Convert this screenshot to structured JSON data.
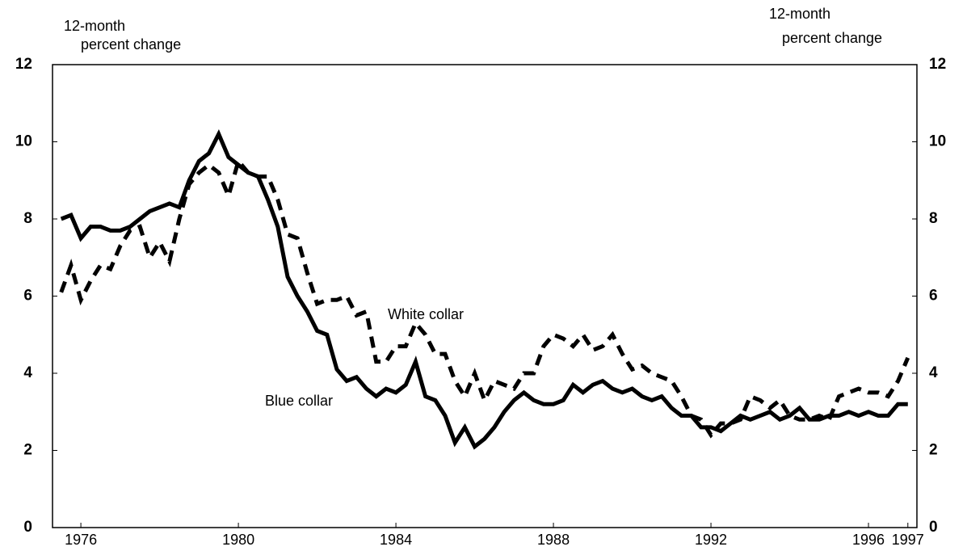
{
  "chart_data": {
    "type": "line",
    "y_label": [
      "12-month",
      "percent  change"
    ],
    "y2_label": [
      "12-month",
      "percent change"
    ],
    "x": [
      1975.5,
      1975.75,
      1976,
      1976.25,
      1976.5,
      1976.75,
      1977,
      1977.25,
      1977.5,
      1977.75,
      1978,
      1978.25,
      1978.5,
      1978.75,
      1979,
      1979.25,
      1979.5,
      1979.75,
      1980,
      1980.25,
      1980.5,
      1980.75,
      1981,
      1981.25,
      1981.5,
      1981.75,
      1982,
      1982.25,
      1982.5,
      1982.75,
      1983,
      1983.25,
      1983.5,
      1983.75,
      1984,
      1984.25,
      1984.5,
      1984.75,
      1985,
      1985.25,
      1985.5,
      1985.75,
      1986,
      1986.25,
      1986.5,
      1986.75,
      1987,
      1987.25,
      1987.5,
      1987.75,
      1988,
      1988.25,
      1988.5,
      1988.75,
      1989,
      1989.25,
      1989.5,
      1989.75,
      1990,
      1990.25,
      1990.5,
      1990.75,
      1991,
      1991.25,
      1991.5,
      1991.75,
      1992,
      1992.25,
      1992.5,
      1992.75,
      1993,
      1993.25,
      1993.5,
      1993.75,
      1994,
      1994.25,
      1994.5,
      1994.75,
      1995,
      1995.25,
      1995.5,
      1995.75,
      1996,
      1996.25,
      1996.5,
      1996.75,
      1997
    ],
    "series": [
      {
        "name": "White collar",
        "color": "#000000",
        "dash": true,
        "values": [
          6.1,
          6.8,
          5.9,
          6.4,
          6.8,
          6.7,
          7.3,
          7.7,
          7.8,
          7.0,
          7.4,
          6.9,
          8.0,
          8.9,
          9.2,
          9.4,
          9.2,
          8.6,
          9.5,
          9.2,
          9.1,
          9.1,
          8.5,
          7.6,
          7.5,
          6.6,
          5.8,
          5.9,
          5.9,
          6.0,
          5.5,
          5.6,
          4.3,
          4.3,
          4.7,
          4.7,
          5.3,
          5.0,
          4.5,
          4.5,
          3.8,
          3.4,
          4.0,
          3.3,
          3.8,
          3.7,
          3.6,
          4.0,
          4.0,
          4.7,
          5.0,
          4.9,
          4.7,
          5.0,
          4.6,
          4.7,
          5.0,
          4.5,
          4.1,
          4.2,
          4.0,
          3.9,
          3.8,
          3.4,
          2.9,
          2.8,
          2.4,
          2.7,
          2.7,
          2.8,
          3.4,
          3.3,
          3.1,
          3.3,
          2.9,
          2.8,
          2.8,
          2.9,
          2.8,
          3.4,
          3.5,
          3.6,
          3.5,
          3.5,
          3.4,
          3.8,
          4.4
        ]
      },
      {
        "name": "Blue collar",
        "color": "#000000",
        "dash": false,
        "values": [
          8.0,
          8.1,
          7.5,
          7.8,
          7.8,
          7.7,
          7.7,
          7.8,
          8.0,
          8.2,
          8.3,
          8.4,
          8.3,
          9.0,
          9.5,
          9.7,
          10.2,
          9.6,
          9.4,
          9.2,
          9.1,
          8.5,
          7.8,
          6.5,
          6.0,
          5.6,
          5.1,
          5.0,
          4.1,
          3.8,
          3.9,
          3.6,
          3.4,
          3.6,
          3.5,
          3.7,
          4.3,
          3.4,
          3.3,
          2.9,
          2.2,
          2.6,
          2.1,
          2.3,
          2.6,
          3.0,
          3.3,
          3.5,
          3.3,
          3.2,
          3.2,
          3.3,
          3.7,
          3.5,
          3.7,
          3.8,
          3.6,
          3.5,
          3.6,
          3.4,
          3.3,
          3.4,
          3.1,
          2.9,
          2.9,
          2.6,
          2.6,
          2.5,
          2.7,
          2.9,
          2.8,
          2.9,
          3.0,
          2.8,
          2.9,
          3.1,
          2.8,
          2.8,
          2.9,
          2.9,
          3.0,
          2.9,
          3.0,
          2.9,
          2.9,
          3.2,
          3.2
        ]
      }
    ],
    "xlim": [
      1975.28,
      1997.23
    ],
    "xticks": [
      1976,
      1980,
      1984,
      1988,
      1992,
      1996,
      1997
    ],
    "ylim": [
      0,
      12
    ],
    "yticks": [
      0,
      2,
      4,
      6,
      8,
      10,
      12
    ],
    "y2lim": [
      0,
      12
    ],
    "y2ticks": [
      0,
      2,
      4,
      6,
      8,
      10,
      12
    ],
    "grid": false
  }
}
